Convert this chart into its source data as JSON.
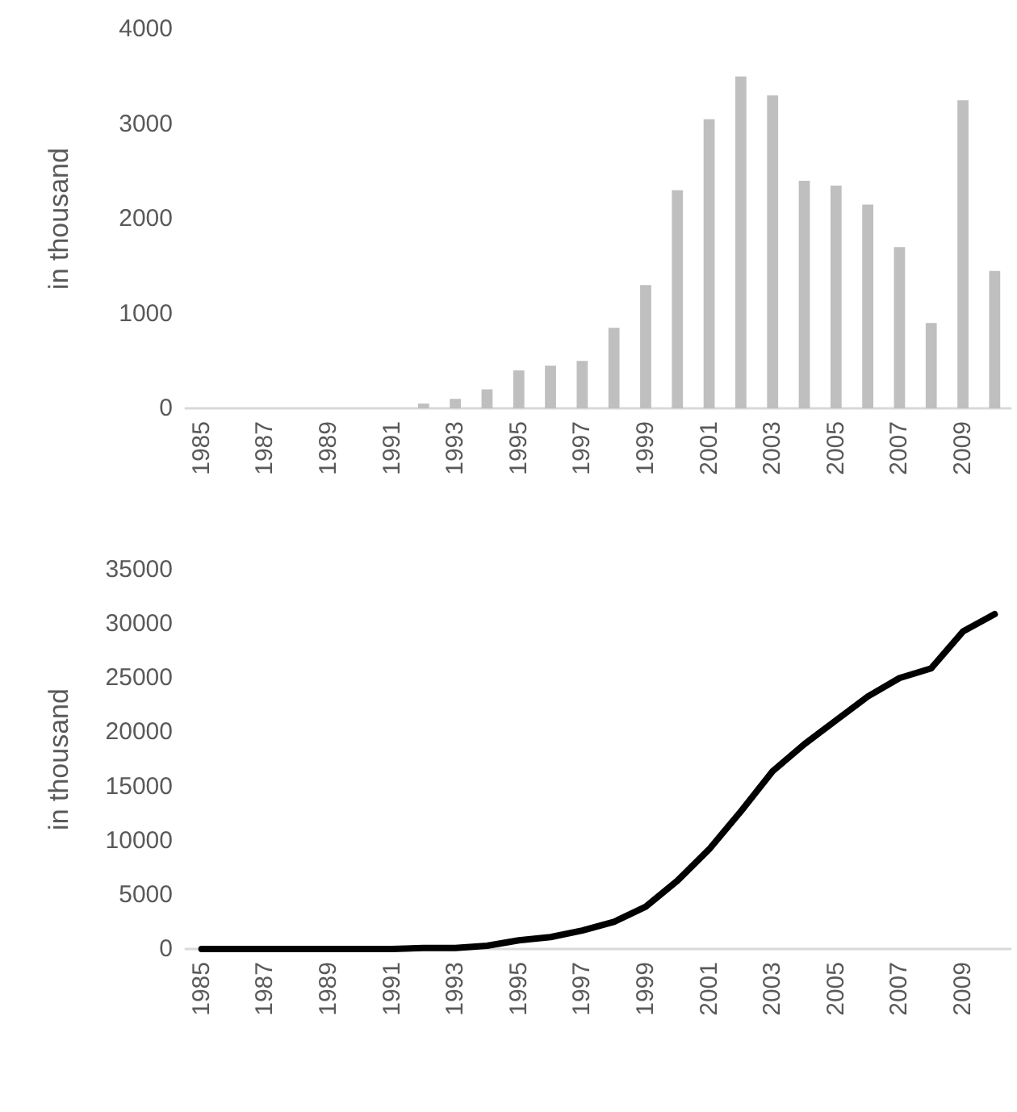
{
  "chart_data": [
    {
      "type": "bar",
      "ylabel": "in thousand",
      "categories": [
        "1985",
        null,
        "1987",
        null,
        "1989",
        null,
        "1991",
        null,
        "1993",
        null,
        "1995",
        null,
        "1997",
        null,
        "1999",
        null,
        "2001",
        null,
        "2003",
        null,
        "2005",
        null,
        "2007",
        null,
        "2009",
        null
      ],
      "values": [
        0,
        0,
        0,
        0,
        0,
        0,
        0,
        50,
        100,
        200,
        400,
        450,
        500,
        850,
        1300,
        2300,
        3050,
        3500,
        3300,
        2400,
        2350,
        2150,
        1700,
        900,
        3250,
        1450
      ],
      "color": "#bfbfbf",
      "ylim": [
        0,
        4000
      ],
      "yticks": [
        0,
        1000,
        2000,
        3000,
        4000
      ]
    },
    {
      "type": "line",
      "ylabel": "in thousand",
      "categories": [
        "1985",
        null,
        "1987",
        null,
        "1989",
        null,
        "1991",
        null,
        "1993",
        null,
        "1995",
        null,
        "1997",
        null,
        "1999",
        null,
        "2001",
        null,
        "2003",
        null,
        "2005",
        null,
        "2007",
        null,
        "2009",
        null
      ],
      "values": [
        0,
        0,
        0,
        0,
        0,
        0,
        0,
        100,
        100,
        300,
        800,
        1100,
        1700,
        2500,
        3900,
        6300,
        9200,
        12700,
        16400,
        18900,
        21100,
        23300,
        25000,
        25900,
        29300,
        30900
      ],
      "color": "#000000",
      "ylim": [
        0,
        35000
      ],
      "yticks": [
        0,
        5000,
        10000,
        15000,
        20000,
        25000,
        30000,
        35000
      ]
    }
  ]
}
